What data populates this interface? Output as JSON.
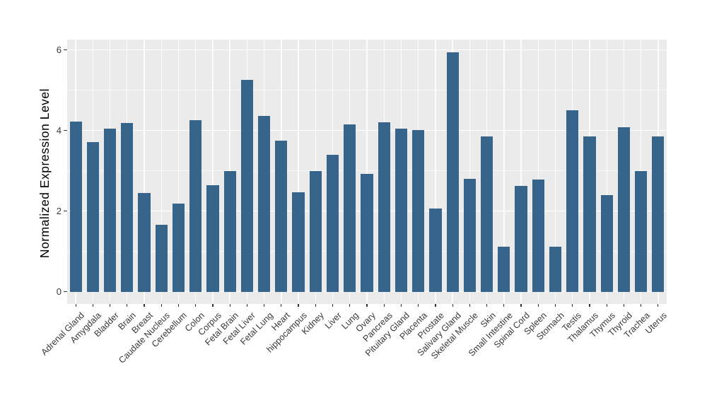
{
  "chart_data": {
    "type": "bar",
    "title": "",
    "xlabel": "",
    "ylabel": "Normalized Expression Level",
    "ylim": [
      0,
      6.26
    ],
    "y_major_ticks": [
      0,
      2,
      4,
      6
    ],
    "y_minor_gridlines": [
      1,
      3,
      5
    ],
    "grid": "on",
    "legend": "none",
    "panel_bg": "#EBEBEB",
    "gridline_color": "#FFFFFF",
    "bar_color": "#36648B",
    "axis_text_color": "#383838",
    "categories": [
      "Adrenal Gland",
      "Amygdala",
      "Bladder",
      "Brain",
      "Breast",
      "Caudate Nucleus",
      "Cerebellum",
      "Colon",
      "Corpus",
      "Fetal Brain",
      "Fetal Liver",
      "Fetal Lung",
      "Heart",
      "hippocampus",
      "Kidney",
      "Liver",
      "Lung",
      "Ovary",
      "Pancreas",
      "Pituitary Gland",
      "Placenta",
      "Prostate",
      "Salivary Gland",
      "Skeletal Muscle",
      "Skin",
      "Small Intestine",
      "Spinal Cord",
      "Spleen",
      "Stomach",
      "Testis",
      "Thalamus",
      "Thymus",
      "Thyroid",
      "Trachea",
      "Uterus"
    ],
    "values": [
      4.22,
      3.72,
      4.05,
      4.18,
      2.45,
      1.67,
      2.19,
      4.25,
      2.64,
      2.99,
      5.26,
      4.36,
      3.75,
      2.46,
      2.99,
      3.39,
      4.16,
      2.92,
      4.21,
      4.05,
      4.02,
      2.07,
      5.94,
      2.81,
      3.85,
      1.11,
      2.63,
      2.79,
      1.11,
      4.51,
      3.85,
      2.4,
      4.08,
      2.99,
      3.85
    ]
  }
}
